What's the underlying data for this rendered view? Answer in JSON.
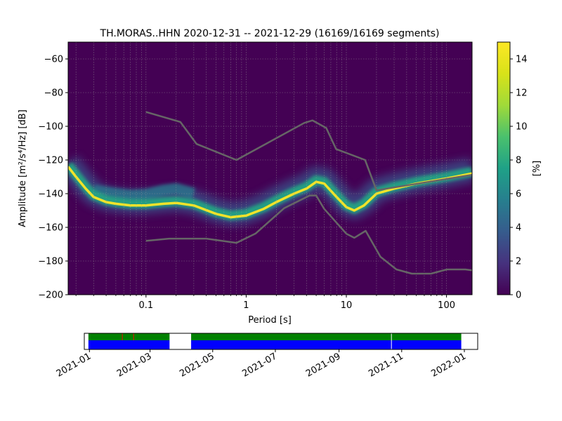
{
  "title": "TH.MORAS..HHN   2020-12-31 -- 2021-12-29  (16169/16169 segments)",
  "colors": {
    "background": "#440154",
    "nlnm_nhnm_line": "#666666",
    "mode_ridge": "#fde725",
    "coverage_available": "#008000",
    "coverage_gap_bar": "#0000ff",
    "coverage_marker": "#ff0000"
  },
  "chart_data": [
    {
      "type": "heatmap",
      "title": "TH.MORAS..HHN   2020-12-31 -- 2021-12-29  (16169/16169 segments)",
      "xlabel": "Period [s]",
      "ylabel": "Amplitude [m²/s⁴/Hz] [dB]",
      "x_scale": "log",
      "xlim": [
        0.0167,
        180
      ],
      "ylim": [
        -200,
        -50
      ],
      "x_ticks": [
        {
          "value": 0.1,
          "label": "0.1"
        },
        {
          "value": 1,
          "label": "1"
        },
        {
          "value": 10,
          "label": "10"
        },
        {
          "value": 100,
          "label": "100"
        }
      ],
      "y_ticks": [
        -200,
        -180,
        -160,
        -140,
        -120,
        -100,
        -80,
        -60
      ],
      "y_tick_labels": [
        "−200",
        "−180",
        "−160",
        "−140",
        "−120",
        "−100",
        "−80",
        "−60"
      ],
      "grid": true,
      "colorbar": {
        "label": "[%]",
        "range": [
          0,
          15
        ],
        "ticks": [
          0,
          2,
          4,
          6,
          8,
          10,
          12,
          14
        ],
        "colormap": "viridis"
      },
      "mode_curve": {
        "periods": [
          0.0167,
          0.02,
          0.025,
          0.03,
          0.04,
          0.05,
          0.07,
          0.1,
          0.15,
          0.2,
          0.3,
          0.5,
          0.7,
          1,
          1.5,
          2,
          3,
          4,
          5,
          6,
          8,
          10,
          12,
          15,
          20,
          30,
          50,
          100,
          180
        ],
        "dB": [
          -124,
          -130,
          -137,
          -142,
          -145,
          -146,
          -147,
          -147,
          -146,
          -145.5,
          -147,
          -152,
          -154,
          -153,
          -149,
          -145,
          -140,
          -137,
          -133,
          -134,
          -142,
          -148,
          -150,
          -147,
          -140,
          -137,
          -134,
          -131,
          -128
        ]
      },
      "secondary_band": {
        "periods": [
          0.03,
          0.05,
          0.07,
          0.1,
          0.15,
          0.2,
          0.3
        ],
        "dB": [
          -138,
          -140,
          -141,
          -140.5,
          -138,
          -137,
          -140
        ]
      },
      "noise_models": [
        {
          "name": "high_noise_model",
          "periods": [
            0.1,
            0.22,
            0.32,
            0.8,
            3.8,
            4.6,
            6.3,
            7.9,
            15.4,
            20,
            354.8
          ],
          "dB": [
            -91.5,
            -97.4,
            -110.5,
            -120,
            -98,
            -96.5,
            -101,
            -113.5,
            -120,
            -138,
            -126
          ]
        },
        {
          "name": "low_noise_model",
          "periods": [
            0.1,
            0.17,
            0.4,
            0.8,
            1.24,
            2.4,
            4.3,
            5,
            6,
            10,
            12,
            15.6,
            21.9,
            31.6,
            45,
            70,
            101,
            154,
            328
          ],
          "dB": [
            -168,
            -166.7,
            -166.7,
            -169.2,
            -163.7,
            -148.6,
            -141.1,
            -141.1,
            -149,
            -163.8,
            -166.2,
            -162.1,
            -177.5,
            -185,
            -187.5,
            -187.5,
            -185,
            -185,
            -187.5
          ]
        }
      ]
    },
    {
      "type": "timeline",
      "x_range": [
        "2020-12-27",
        "2022-01-14"
      ],
      "x_tick_labels": [
        "2021-01",
        "2021-03",
        "2021-05",
        "2021-07",
        "2021-09",
        "2021-11",
        "2022-01"
      ],
      "x_tick_dates": [
        "2021-01-01",
        "2021-03-01",
        "2021-05-01",
        "2021-07-01",
        "2021-09-01",
        "2021-11-01",
        "2022-01-01"
      ],
      "available_spans": [
        {
          "start": "2020-12-31",
          "end": "2021-03-20"
        },
        {
          "start": "2021-04-10",
          "end": "2021-12-29"
        }
      ],
      "gaps": [
        "2021-10-22"
      ],
      "red_markers": [
        "2021-02-02",
        "2021-02-13"
      ]
    }
  ]
}
